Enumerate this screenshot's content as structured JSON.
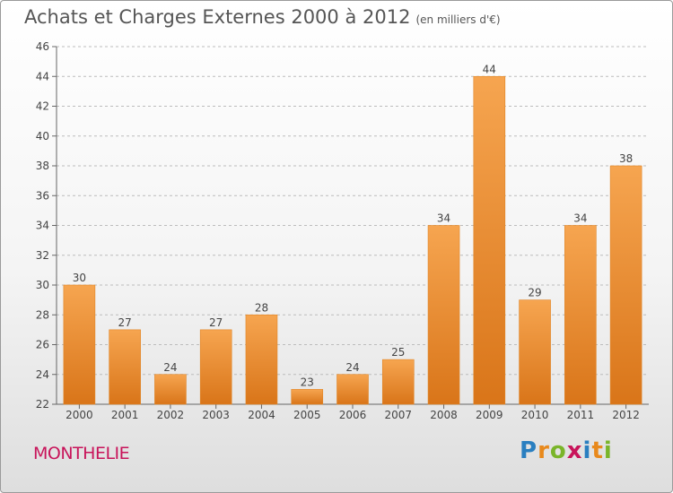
{
  "title": "Achats et Charges Externes 2000 à 2012",
  "subtitle": "(en milliers d'€)",
  "place": "MONTHELIE",
  "logo": {
    "text": "Proxiti",
    "letters": [
      {
        "ch": "P",
        "color": "#2a7fc0"
      },
      {
        "ch": "r",
        "color": "#e8891c"
      },
      {
        "ch": "o",
        "color": "#7ab52a"
      },
      {
        "ch": "x",
        "color": "#c8145a"
      },
      {
        "ch": "i",
        "color": "#2a7fc0"
      },
      {
        "ch": "t",
        "color": "#e8891c"
      },
      {
        "ch": "i",
        "color": "#7ab52a"
      }
    ]
  },
  "colors": {
    "bar_top": "#f6a550",
    "bar_bottom": "#d97519",
    "bar_stroke": "#e08526",
    "grid": "#bcbcbc"
  },
  "chart_data": {
    "type": "bar",
    "categories": [
      "2000",
      "2001",
      "2002",
      "2003",
      "2004",
      "2005",
      "2006",
      "2007",
      "2008",
      "2009",
      "2010",
      "2011",
      "2012"
    ],
    "values": [
      30,
      27,
      24,
      27,
      28,
      23,
      24,
      25,
      34,
      44,
      29,
      34,
      38
    ],
    "ylim": [
      22,
      46
    ],
    "yticks": [
      22,
      24,
      26,
      28,
      30,
      32,
      34,
      36,
      38,
      40,
      42,
      44,
      46
    ],
    "grid": true,
    "data_labels": true
  }
}
